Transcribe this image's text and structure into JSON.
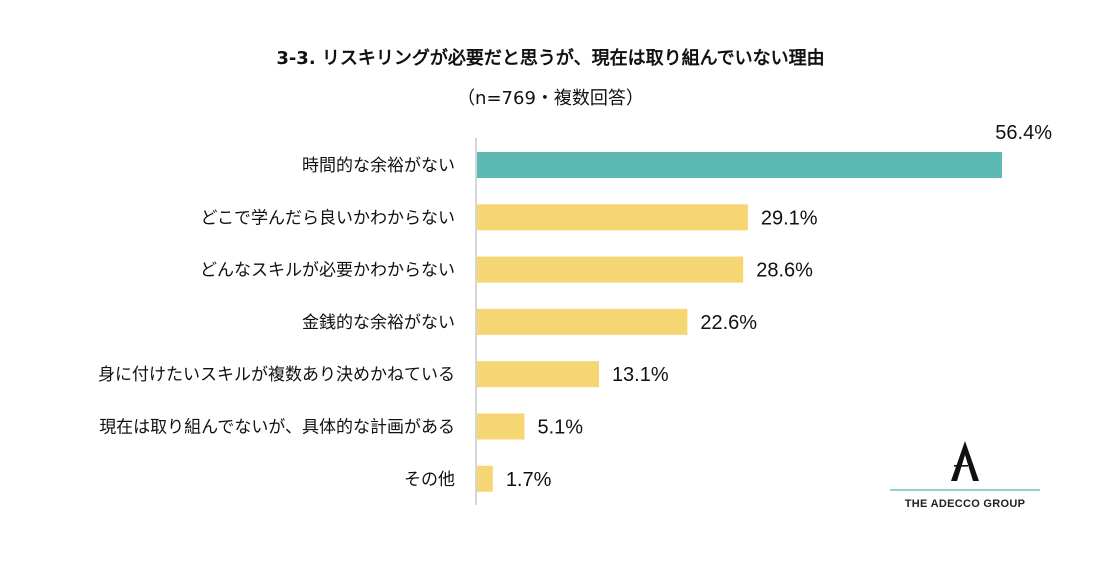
{
  "chart_data": {
    "type": "bar",
    "orientation": "horizontal",
    "title": "3-3. リスキリングが必要だと思うが、現在は取り組んでいない理由",
    "subtitle": "（n=769・複数回答）",
    "categories": [
      "時間的な余裕がない",
      "どこで学んだら良いかわからない",
      "どんなスキルが必要かわからない",
      "金銭的な余裕がない",
      "身に付けたいスキルが複数あり決めかねている",
      "現在は取り組んでないが、具体的な計画がある",
      "その他"
    ],
    "values": [
      56.4,
      29.1,
      28.6,
      22.6,
      13.1,
      5.1,
      1.7
    ],
    "value_labels": [
      "56.4%",
      "29.1%",
      "28.6%",
      "22.6%",
      "13.1%",
      "5.1%",
      "1.7%"
    ],
    "bar_colors": [
      "#5cb8b2",
      "#f5d673",
      "#f5d673",
      "#f5d673",
      "#f5d673",
      "#f5d673",
      "#f5d673"
    ],
    "xlim": [
      0,
      56.4
    ],
    "grid": false,
    "legend": "none"
  },
  "brand": {
    "name": "THE ADECCO GROUP",
    "line_color": "#8fd3cc"
  }
}
